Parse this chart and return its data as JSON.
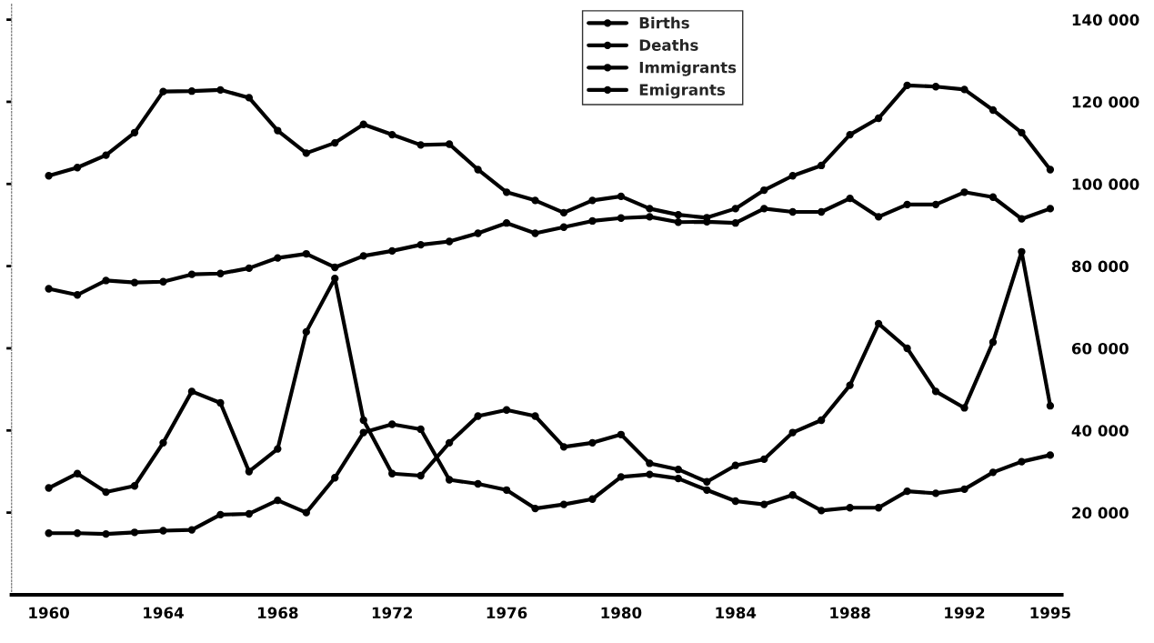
{
  "chart_data": {
    "type": "line",
    "x": [
      1960,
      1961,
      1962,
      1963,
      1964,
      1965,
      1966,
      1967,
      1968,
      1969,
      1970,
      1971,
      1972,
      1973,
      1974,
      1975,
      1976,
      1977,
      1978,
      1979,
      1980,
      1981,
      1982,
      1983,
      1984,
      1985,
      1986,
      1987,
      1988,
      1989,
      1990,
      1991,
      1992,
      1993,
      1994,
      1995
    ],
    "series": [
      {
        "name": "Births",
        "color": "#000000",
        "values": [
          102000,
          104000,
          107000,
          112500,
          122500,
          122600,
          122900,
          121000,
          113000,
          107500,
          110000,
          114500,
          112000,
          109500,
          109700,
          103500,
          98000,
          96000,
          93000,
          96000,
          97000,
          94000,
          92500,
          91800,
          94000,
          98500,
          102000,
          104500,
          112000,
          116000,
          124000,
          123700,
          123000,
          118000,
          112500,
          103500
        ]
      },
      {
        "name": "Deaths",
        "color": "#000000",
        "values": [
          74500,
          73000,
          76500,
          76000,
          76200,
          78000,
          78200,
          79500,
          82000,
          83000,
          79700,
          82500,
          83700,
          85200,
          86000,
          88000,
          90500,
          88000,
          89500,
          91000,
          91700,
          92000,
          90700,
          90800,
          90500,
          94000,
          93200,
          93200,
          96500,
          92000,
          95000,
          95000,
          98000,
          96800,
          91500,
          94000
        ]
      },
      {
        "name": "Immigrants",
        "color": "#000000",
        "values": [
          26000,
          29500,
          25000,
          26500,
          37000,
          49500,
          46700,
          30000,
          35500,
          64000,
          77000,
          42500,
          29500,
          29000,
          37000,
          43500,
          45000,
          43500,
          36000,
          37000,
          39000,
          32000,
          30500,
          27500,
          31500,
          33000,
          39500,
          42500,
          51000,
          66000,
          60000,
          49500,
          45500,
          61500,
          83500,
          46000
        ]
      },
      {
        "name": "Emigrants",
        "color": "#000000",
        "values": [
          15000,
          15000,
          14800,
          15200,
          15600,
          15800,
          19500,
          19700,
          23000,
          20000,
          28500,
          39500,
          41500,
          40300,
          28000,
          27000,
          25500,
          21000,
          22000,
          23300,
          28700,
          29300,
          28300,
          25500,
          22800,
          22000,
          24300,
          20500,
          21200,
          21200,
          25200,
          24700,
          25700,
          29800,
          32400,
          34000
        ]
      }
    ],
    "xlim": [
      1958.7,
      1995.4
    ],
    "xticks": [
      1960,
      1964,
      1968,
      1972,
      1976,
      1980,
      1984,
      1988,
      1992,
      1995
    ],
    "ylim": [
      0,
      144000
    ],
    "yticks": [
      {
        "value": 20000,
        "label": "20 000"
      },
      {
        "value": 40000,
        "label": "40 000"
      },
      {
        "value": 60000,
        "label": "60 000"
      },
      {
        "value": 80000,
        "label": "80 000"
      },
      {
        "value": 100000,
        "label": "100 000"
      },
      {
        "value": 120000,
        "label": "120 000"
      },
      {
        "value": 140000,
        "label": "140 000"
      }
    ],
    "marker": "circle",
    "line_style": "solid",
    "legend": "top",
    "grid": false
  }
}
